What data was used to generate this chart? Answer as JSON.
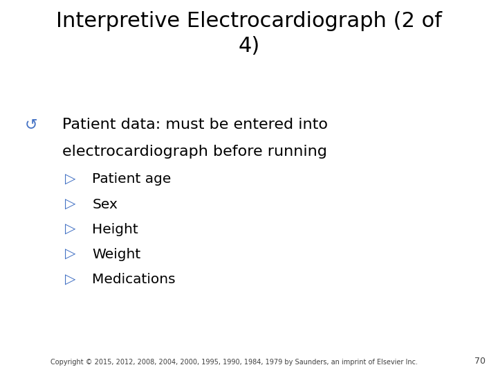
{
  "title_line1": "Interpretive Electrocardiograph (2 of",
  "title_line2": "4)",
  "title_fontsize": 22,
  "title_color": "#000000",
  "background_color": "#ffffff",
  "bullet1_symbol": "↺",
  "bullet1_color": "#4472c4",
  "bullet1_text_line1": "Patient data: must be entered into",
  "bullet1_text_line2": "electrocardiograph before running",
  "bullet1_fontsize": 16,
  "bullet1_text_color": "#000000",
  "sub_bullet_symbol": "▷",
  "sub_bullet_color": "#4472c4",
  "sub_bullets": [
    "Patient age",
    "Sex",
    "Height",
    "Weight",
    "Medications"
  ],
  "sub_bullet_fontsize": 14.5,
  "sub_bullet_text_color": "#000000",
  "footer_text": "Copyright © 2015, 2012, 2008, 2004, 2000, 1995, 1990, 1984, 1979 by Saunders, an imprint of Elsevier Inc.",
  "footer_fontsize": 7,
  "footer_color": "#404040",
  "page_number": "70",
  "page_number_fontsize": 9,
  "page_number_color": "#404040"
}
